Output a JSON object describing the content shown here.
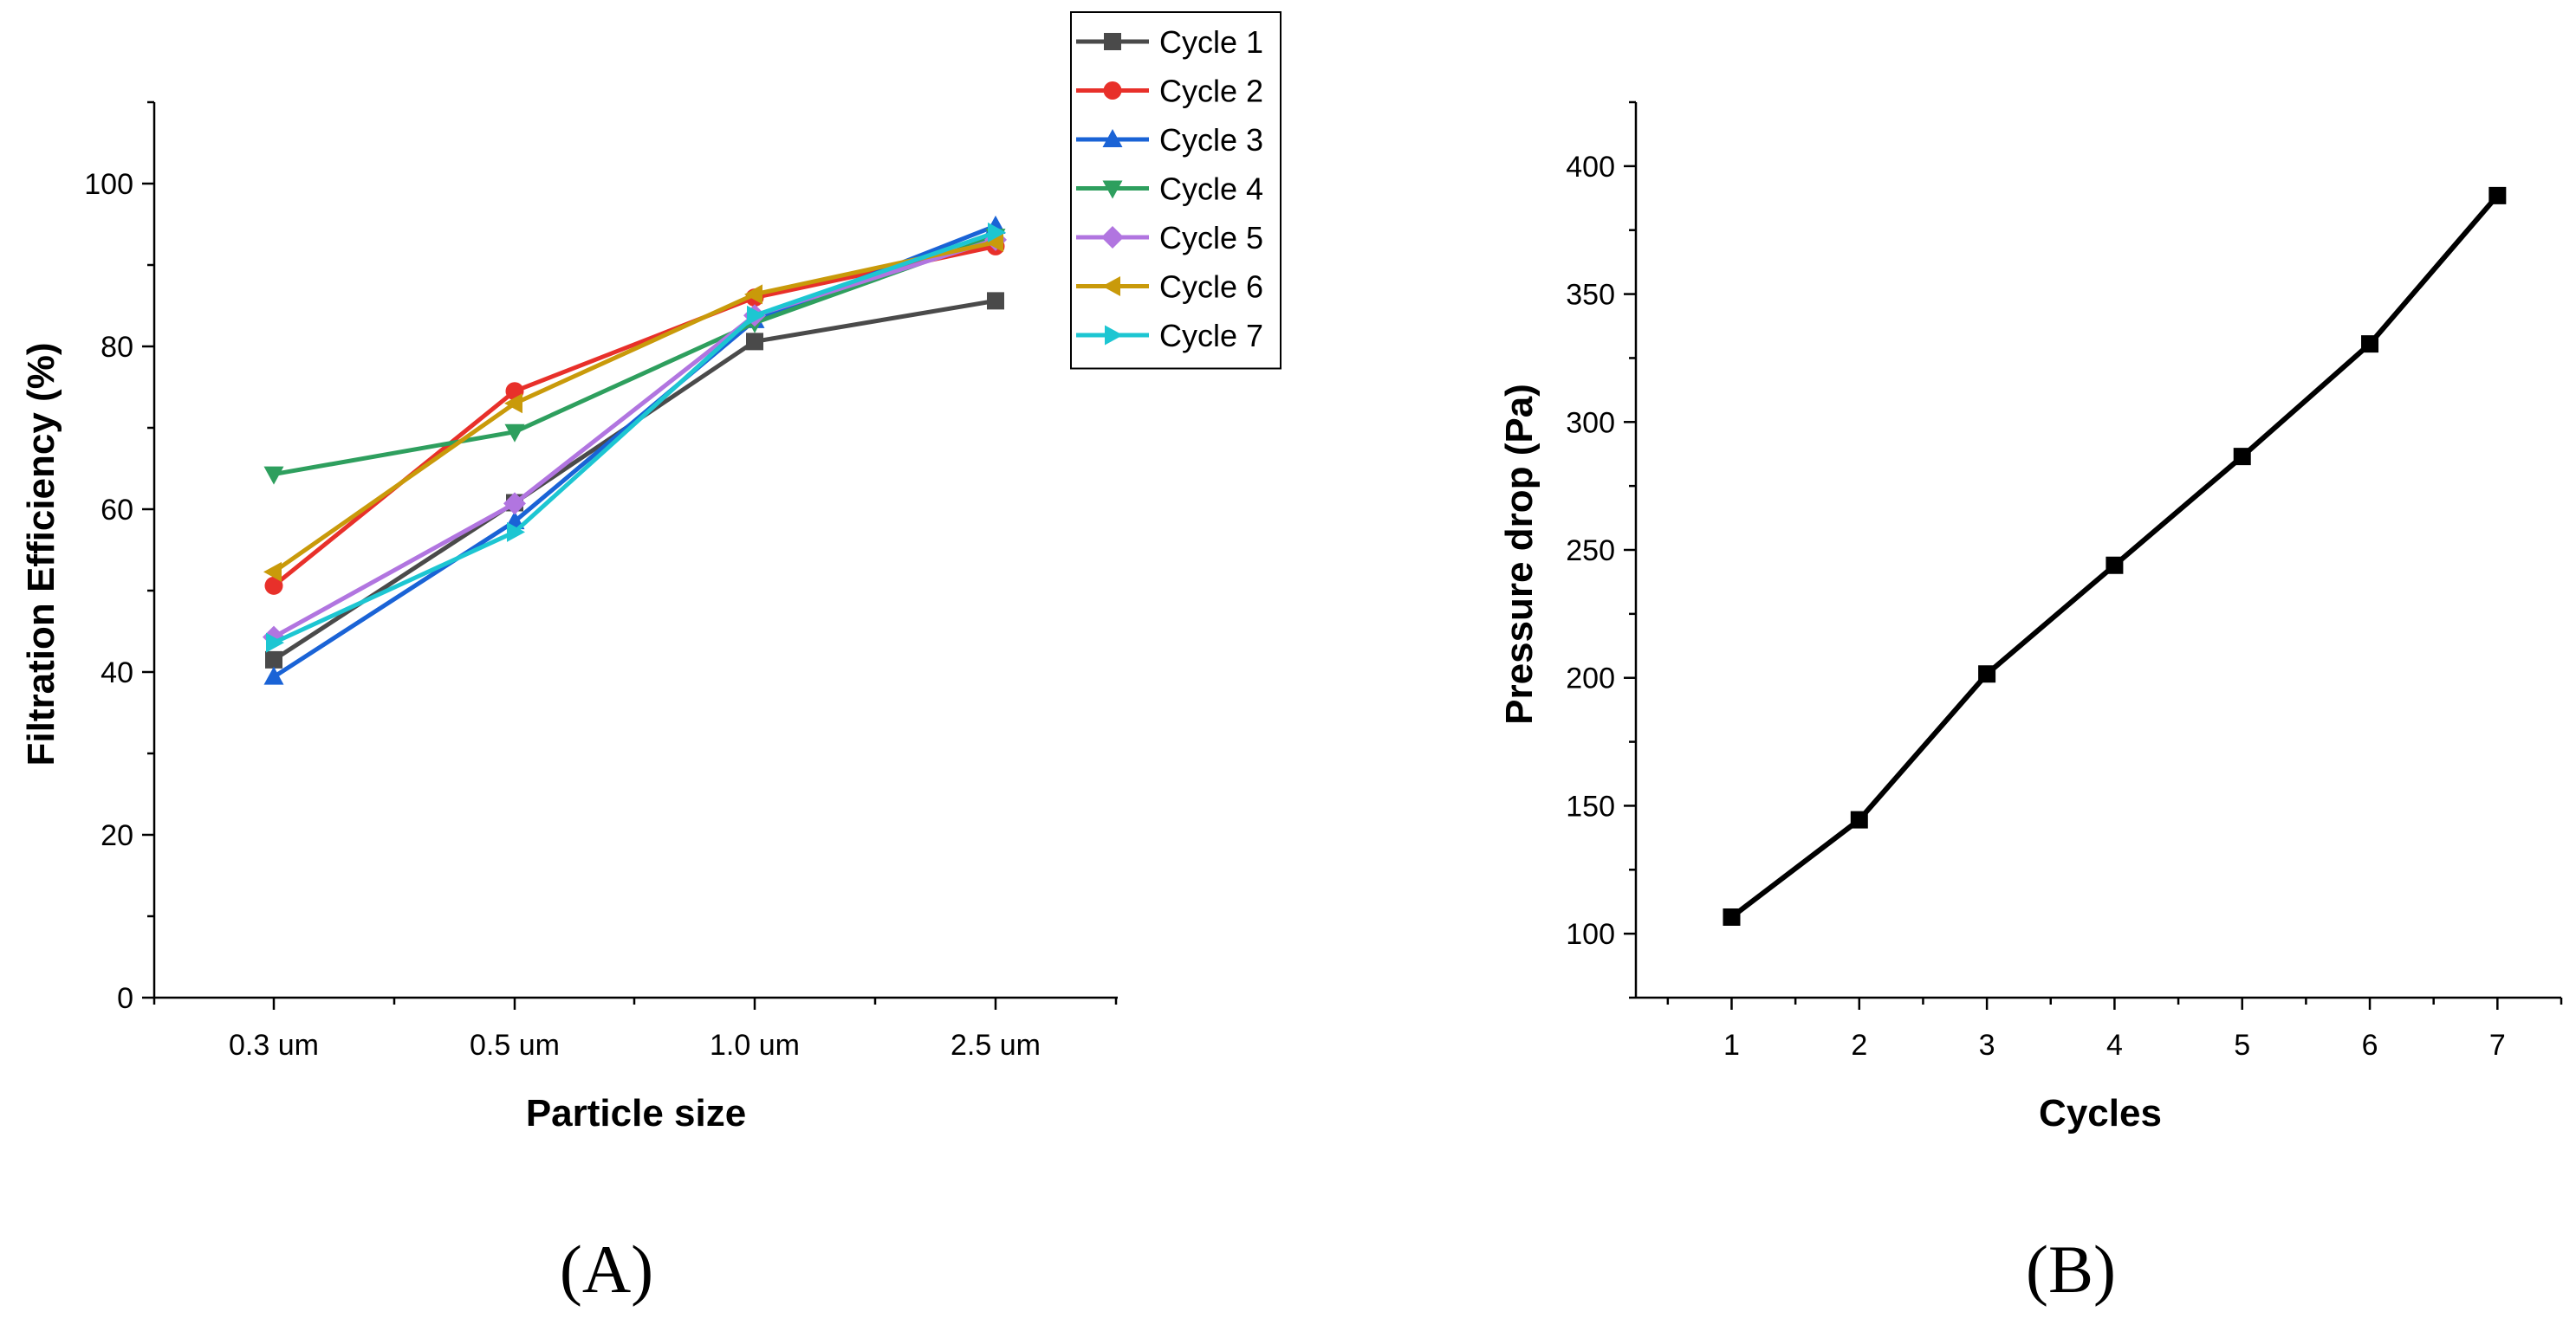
{
  "chart_data": [
    {
      "panel": "(A)",
      "type": "line",
      "title": "",
      "xlabel": "Particle size",
      "ylabel": "Filtration Efficiency (%)",
      "categories": [
        "0.3 um",
        "0.5 um",
        "1.0 um",
        "2.5 um"
      ],
      "ylim": [
        0,
        110
      ],
      "yticks": [
        0,
        20,
        40,
        60,
        80,
        100
      ],
      "legend_position": "top-right",
      "series": [
        {
          "name": "Cycle 1",
          "color": "#4a4a4a",
          "marker": "square",
          "values": [
            41.5,
            60.8,
            80.6,
            85.6
          ]
        },
        {
          "name": "Cycle 2",
          "color": "#e8302a",
          "marker": "circle",
          "values": [
            50.6,
            74.5,
            86.0,
            92.3
          ]
        },
        {
          "name": "Cycle 3",
          "color": "#1a63d6",
          "marker": "triangle-up",
          "values": [
            39.4,
            58.5,
            83.2,
            94.8
          ]
        },
        {
          "name": "Cycle 4",
          "color": "#2e9f5e",
          "marker": "triangle-down",
          "values": [
            64.3,
            69.5,
            82.9,
            93.5
          ]
        },
        {
          "name": "Cycle 5",
          "color": "#b175e0",
          "marker": "diamond",
          "values": [
            44.3,
            60.7,
            83.8,
            93.1
          ]
        },
        {
          "name": "Cycle 6",
          "color": "#c99a0a",
          "marker": "triangle-left",
          "values": [
            52.3,
            73.0,
            86.4,
            92.8
          ]
        },
        {
          "name": "Cycle 7",
          "color": "#1dc6d2",
          "marker": "triangle-right",
          "values": [
            43.6,
            57.2,
            83.8,
            94.0
          ]
        }
      ]
    },
    {
      "panel": "(B)",
      "type": "line",
      "title": "",
      "xlabel": "Cycles",
      "ylabel": "Pressure drop (Pa)",
      "x": [
        1,
        2,
        3,
        4,
        5,
        6,
        7
      ],
      "xlim": [
        0.25,
        7.5
      ],
      "ylim": [
        75,
        425
      ],
      "yticks": [
        100,
        150,
        200,
        250,
        300,
        350,
        400
      ],
      "series": [
        {
          "name": "Pressure drop",
          "color": "#000000",
          "marker": "square",
          "values": [
            106.5,
            144.5,
            201.5,
            244.0,
            286.5,
            330.5,
            388.5
          ]
        }
      ]
    }
  ]
}
